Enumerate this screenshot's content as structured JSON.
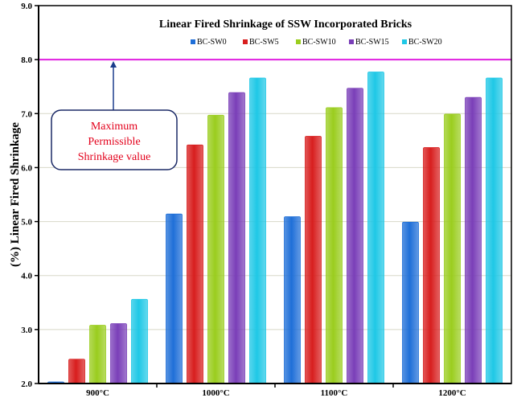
{
  "chart_data": {
    "type": "bar",
    "title": "Linear Fired Shrinkage  of SSW Incorporated Bricks",
    "xlabel": "",
    "ylabel": "(%) Linear Fired  Shrinkage",
    "ylim": [
      2.0,
      9.0
    ],
    "yticks": [
      "2.0",
      "3.0",
      "4.0",
      "5.0",
      "6.0",
      "7.0",
      "8.0",
      "9.0"
    ],
    "categories": [
      "900°C",
      "1000°C",
      "1100°C",
      "1200°C"
    ],
    "legend_position": "top",
    "grid": true,
    "series": [
      {
        "name": "BC-SW0",
        "color": "#1f6fd8",
        "values": [
          2.03,
          5.14,
          5.09,
          4.99
        ]
      },
      {
        "name": "BC-SW5",
        "color": "#d81e1e",
        "values": [
          2.45,
          6.42,
          6.58,
          6.37
        ]
      },
      {
        "name": "BC-SW10",
        "color": "#9acd1e",
        "values": [
          3.08,
          6.97,
          7.11,
          6.99
        ]
      },
      {
        "name": "BC-SW15",
        "color": "#7a3fb8",
        "values": [
          3.11,
          7.39,
          7.47,
          7.3
        ]
      },
      {
        "name": "BC-SW20",
        "color": "#1fc8e6",
        "values": [
          3.56,
          7.66,
          7.77,
          7.66
        ]
      }
    ],
    "reference_line": {
      "value": 8.0,
      "color": "#e020e0"
    },
    "annotation": {
      "lines": [
        "Maximum",
        "Permissible",
        "Shrinkage value"
      ],
      "color": "#e3001b",
      "border_color": "#1b2a66"
    }
  }
}
